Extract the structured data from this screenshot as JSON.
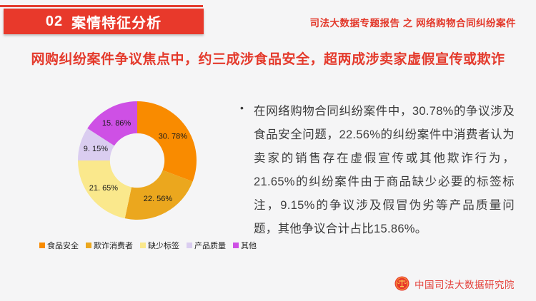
{
  "header": {
    "section_number": "02",
    "section_title": "案情特征分析",
    "report_title": "司法大数据专题报告 之 网络购物合同纠纷案件",
    "accent_red": "#e8392b"
  },
  "headline": {
    "text": "网购纠纷案件争议焦点中，约三成涉食品安全，超两成涉卖家虚假宣传或欺诈",
    "color": "#e43a2c"
  },
  "chart_data": {
    "type": "pie",
    "subtype": "donut",
    "categories": [
      "食品安全",
      "欺诈消费者",
      "缺少标签",
      "产品质量",
      "其他"
    ],
    "values": [
      30.78,
      22.56,
      21.65,
      9.15,
      15.86
    ],
    "value_labels": [
      "30. 78%",
      "22. 56%",
      "21. 65%",
      "9. 15%",
      "15. 86%"
    ],
    "colors": [
      "#f98b00",
      "#eba71e",
      "#fae88c",
      "#dacdf0",
      "#ce50e5"
    ],
    "start_angle_deg": 0,
    "direction": "clockwise",
    "inner_radius_ratio": 0.46,
    "grid": false,
    "legend_position": "bottom",
    "label_color": "#1a1a1a"
  },
  "body": {
    "bullet": "•",
    "paragraph": "在网络购物合同纠纷案件中，30.78%的争议涉及食品安全问题，22.56%的纠纷案件中消费者认为卖家的销售存在虚假宣传或其他欺诈行为，21.65%的纠纷案件由于商品缺少必要的标签标注，9.15%的争议涉及假冒伪劣等产品质量问题，其他争议合计占比15.86%。"
  },
  "footer": {
    "org_name": "中国司法大数据研究院",
    "logo_icon": "justice-scales-emblem"
  }
}
